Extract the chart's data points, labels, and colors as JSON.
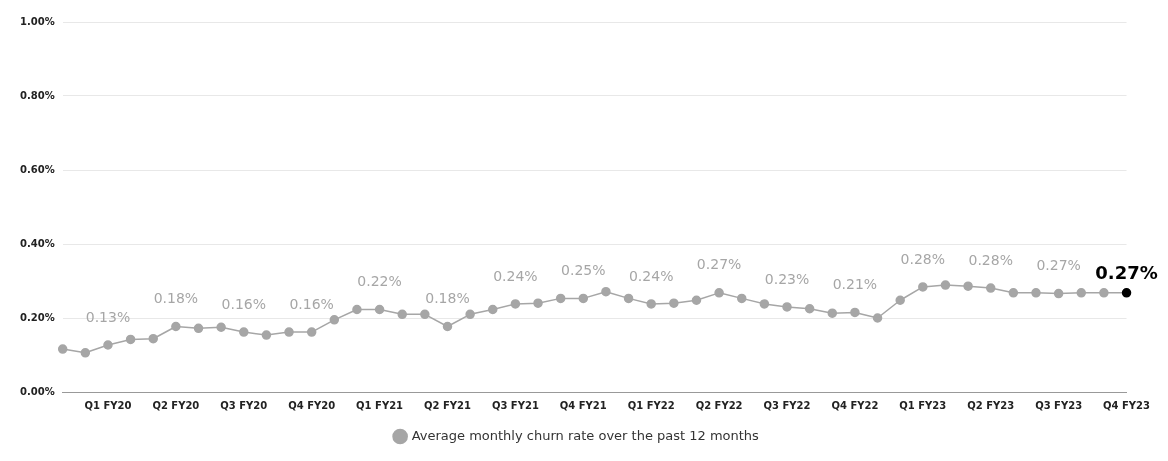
{
  "chart_data": {
    "type": "line",
    "categories": [
      null,
      null,
      "Q1 FY20",
      null,
      null,
      "Q2 FY20",
      null,
      null,
      "Q3 FY20",
      null,
      null,
      "Q4 FY20",
      null,
      null,
      "Q1 FY21",
      null,
      null,
      "Q2 FY21",
      null,
      null,
      "Q3 FY21",
      null,
      null,
      "Q4 FY21",
      null,
      null,
      "Q1 FY22",
      null,
      null,
      "Q2 FY22",
      null,
      null,
      "Q3 FY22",
      null,
      null,
      "Q4 FY22",
      null,
      null,
      "Q1 FY23",
      null,
      null,
      "Q2 FY23",
      null,
      null,
      "Q3 FY23",
      null,
      null,
      "Q4 FY23"
    ],
    "series": [
      {
        "name": "Average monthly churn rate over the past 12 months",
        "color": "#a6a6a6",
        "values": [
          0.116,
          0.106,
          0.127,
          0.142,
          0.144,
          0.177,
          0.172,
          0.175,
          0.162,
          0.154,
          0.162,
          0.162,
          0.195,
          0.223,
          0.223,
          0.21,
          0.21,
          0.177,
          0.21,
          0.223,
          0.238,
          0.24,
          0.253,
          0.253,
          0.271,
          0.253,
          0.238,
          0.24,
          0.248,
          0.268,
          0.253,
          0.238,
          0.23,
          0.225,
          0.213,
          0.215,
          0.2,
          0.248,
          0.284,
          0.289,
          0.286,
          0.281,
          0.268,
          0.268,
          0.266,
          0.268,
          0.268,
          0.268
        ],
        "colors": [
          "#a6a6a6",
          "#a6a6a6",
          "#a6a6a6",
          "#a6a6a6",
          "#a6a6a6",
          "#a6a6a6",
          "#a6a6a6",
          "#a6a6a6",
          "#a6a6a6",
          "#a6a6a6",
          "#a6a6a6",
          "#a6a6a6",
          "#a6a6a6",
          "#a6a6a6",
          "#a6a6a6",
          "#a6a6a6",
          "#a6a6a6",
          "#a6a6a6",
          "#a6a6a6",
          "#a6a6a6",
          "#a6a6a6",
          "#a6a6a6",
          "#a6a6a6",
          "#a6a6a6",
          "#a6a6a6",
          "#a6a6a6",
          "#a6a6a6",
          "#a6a6a6",
          "#a6a6a6",
          "#a6a6a6",
          "#a6a6a6",
          "#a6a6a6",
          "#a6a6a6",
          "#a6a6a6",
          "#a6a6a6",
          "#a6a6a6",
          "#a6a6a6",
          "#a6a6a6",
          "#a6a6a6",
          "#a6a6a6",
          "#a6a6a6",
          "#a6a6a6",
          "#a6a6a6",
          "#a6a6a6",
          "#a6a6a6",
          "#a6a6a6",
          "#a6a6a6",
          "#000000"
        ],
        "value_labels": [
          null,
          null,
          "0.13%",
          null,
          null,
          "0.18%",
          null,
          null,
          "0.16%",
          null,
          null,
          "0.16%",
          null,
          null,
          "0.22%",
          null,
          null,
          "0.18%",
          null,
          null,
          "0.24%",
          null,
          null,
          "0.25%",
          null,
          null,
          "0.24%",
          null,
          null,
          "0.27%",
          null,
          null,
          "0.23%",
          null,
          null,
          "0.21%",
          null,
          null,
          "0.28%",
          null,
          null,
          "0.28%",
          null,
          null,
          "0.27%",
          null,
          null,
          "0.27%"
        ]
      }
    ],
    "ylim": [
      0,
      1
    ],
    "yticks": [
      {
        "value": 0,
        "label": "0.00%"
      },
      {
        "value": 0.2,
        "label": "0.20%"
      },
      {
        "value": 0.4,
        "label": "0.40%"
      },
      {
        "value": 0.6,
        "label": "0.60%"
      },
      {
        "value": 0.8,
        "label": "0.80%"
      },
      {
        "value": 1,
        "label": "1.00%"
      }
    ],
    "grid": "y",
    "legend": "bottom",
    "marker": "circle",
    "line_style": "solid"
  }
}
